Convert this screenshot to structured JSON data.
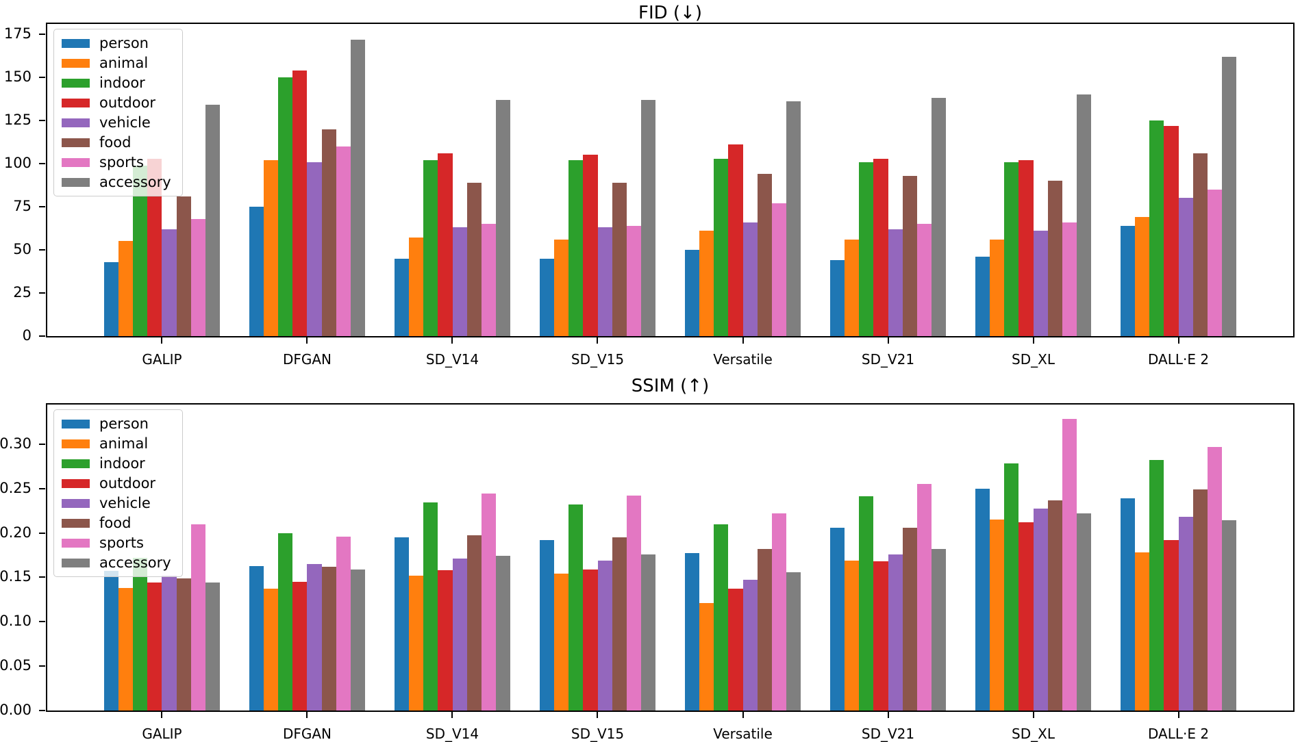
{
  "chart_data": [
    {
      "type": "bar",
      "title": "FID (↓)",
      "xlabel": "",
      "ylabel": "",
      "categories": [
        "GALIP",
        "DFGAN",
        "SD_V14",
        "SD_V15",
        "Versatile",
        "SD_V21",
        "SD_XL",
        "DALL·E 2"
      ],
      "series": [
        {
          "name": "person",
          "color": "#1f77b4",
          "values": [
            43,
            75,
            45,
            45,
            50,
            44,
            46,
            64
          ]
        },
        {
          "name": "animal",
          "color": "#ff7f0e",
          "values": [
            55,
            102,
            57,
            56,
            61,
            56,
            56,
            69
          ]
        },
        {
          "name": "indoor",
          "color": "#2ca02c",
          "values": [
            99,
            150,
            102,
            102,
            103,
            101,
            101,
            125
          ]
        },
        {
          "name": "outdoor",
          "color": "#d62728",
          "values": [
            103,
            154,
            106,
            105,
            111,
            103,
            102,
            122
          ]
        },
        {
          "name": "vehicle",
          "color": "#9467bd",
          "values": [
            62,
            101,
            63,
            63,
            66,
            62,
            61,
            80
          ]
        },
        {
          "name": "food",
          "color": "#8c564b",
          "values": [
            81,
            120,
            89,
            89,
            94,
            93,
            90,
            106
          ]
        },
        {
          "name": "sports",
          "color": "#e377c2",
          "values": [
            68,
            110,
            65,
            64,
            77,
            65,
            66,
            85
          ]
        },
        {
          "name": "accessory",
          "color": "#7f7f7f",
          "values": [
            134,
            172,
            137,
            137,
            136,
            138,
            140,
            162
          ]
        }
      ],
      "ylim": [
        0,
        181
      ],
      "yticks": [
        0,
        25,
        50,
        75,
        100,
        125,
        150,
        175
      ],
      "ytick_labels": [
        "0",
        "25",
        "50",
        "75",
        "100",
        "125",
        "150",
        "175"
      ],
      "legend_position": "upper left",
      "grid": false
    },
    {
      "type": "bar",
      "title": "SSIM (↑)",
      "xlabel": "",
      "ylabel": "",
      "categories": [
        "GALIP",
        "DFGAN",
        "SD_V14",
        "SD_V15",
        "Versatile",
        "SD_V21",
        "SD_XL",
        "DALL·E 2"
      ],
      "series": [
        {
          "name": "person",
          "color": "#1f77b4",
          "values": [
            0.157,
            0.163,
            0.195,
            0.192,
            0.177,
            0.206,
            0.25,
            0.239
          ]
        },
        {
          "name": "animal",
          "color": "#ff7f0e",
          "values": [
            0.138,
            0.137,
            0.152,
            0.154,
            0.121,
            0.169,
            0.215,
            0.178
          ]
        },
        {
          "name": "indoor",
          "color": "#2ca02c",
          "values": [
            0.172,
            0.2,
            0.234,
            0.232,
            0.21,
            0.241,
            0.278,
            0.282
          ]
        },
        {
          "name": "outdoor",
          "color": "#d62728",
          "values": [
            0.144,
            0.145,
            0.158,
            0.159,
            0.137,
            0.168,
            0.212,
            0.192
          ]
        },
        {
          "name": "vehicle",
          "color": "#9467bd",
          "values": [
            0.152,
            0.165,
            0.171,
            0.169,
            0.147,
            0.176,
            0.227,
            0.218
          ]
        },
        {
          "name": "food",
          "color": "#8c564b",
          "values": [
            0.149,
            0.162,
            0.197,
            0.195,
            0.182,
            0.206,
            0.237,
            0.249
          ]
        },
        {
          "name": "sports",
          "color": "#e377c2",
          "values": [
            0.21,
            0.196,
            0.244,
            0.242,
            0.222,
            0.255,
            0.328,
            0.297
          ]
        },
        {
          "name": "accessory",
          "color": "#7f7f7f",
          "values": [
            0.144,
            0.159,
            0.174,
            0.176,
            0.156,
            0.182,
            0.222,
            0.214
          ]
        }
      ],
      "ylim": [
        0,
        0.3445
      ],
      "yticks": [
        0,
        0.05,
        0.1,
        0.15,
        0.2,
        0.25,
        0.3
      ],
      "ytick_labels": [
        "0.00",
        "0.05",
        "0.10",
        "0.15",
        "0.20",
        "0.25",
        "0.30"
      ],
      "legend_position": "upper left",
      "grid": false
    }
  ]
}
